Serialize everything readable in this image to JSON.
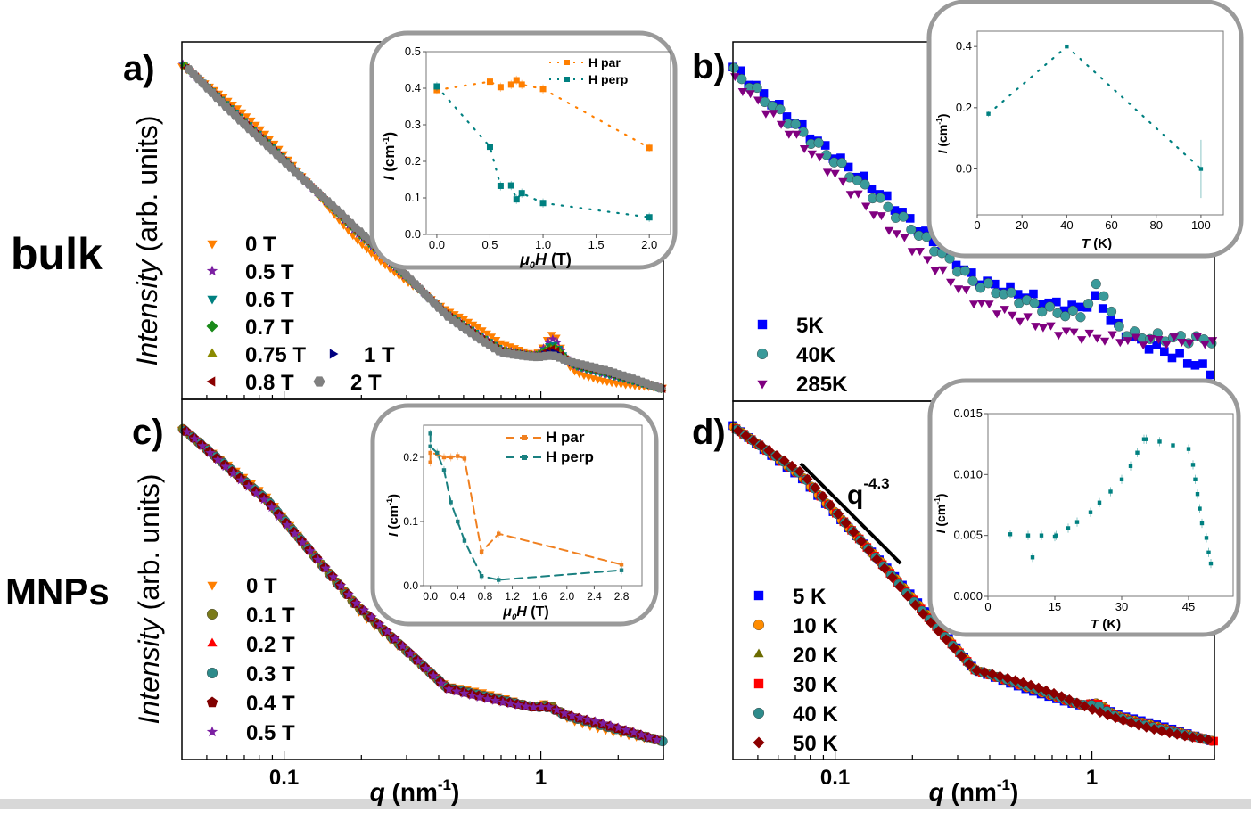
{
  "labels": {
    "panel_a": "a)",
    "panel_b": "b)",
    "panel_c": "c)",
    "panel_d": "d)",
    "row_top": "bulk",
    "row_bottom": "MNPs",
    "ylabel_italic": "Intensity",
    "ylabel_rest": " (arb. units)",
    "xlabel_q": "q",
    "xlabel_unit": " (nm",
    "xlabel_exp": "-1",
    "xlabel_close": ")",
    "slope_base": "q",
    "slope_exp": "-4.3"
  },
  "chart_data": [
    {
      "id": "a",
      "type": "scatter",
      "xscale": "log",
      "xlim": [
        0.04,
        3.0
      ],
      "ylim": [
        0,
        1
      ],
      "xticks": [
        "0.1",
        "1"
      ],
      "xtick_values": [
        0.1,
        1
      ],
      "xlabel": "q (nm-1)",
      "ylabel": "Intensity (arb. units)",
      "base_q": [
        0.04,
        0.086,
        0.19,
        0.43,
        0.7,
        1.1,
        3.0
      ],
      "base_I": [
        0.94,
        0.72,
        0.47,
        0.24,
        0.14,
        0.11,
        0.03
      ],
      "peak_q": 1.12,
      "series": [
        {
          "name": "0 T",
          "color": "#FF7F00",
          "marker": "triangle-down",
          "peak": 0.08,
          "offset": -0.02
        },
        {
          "name": "0.5 T",
          "color": "#7B1FA2",
          "marker": "star",
          "peak": 0.06,
          "offset": 0.0
        },
        {
          "name": "0.6 T",
          "color": "#008080",
          "marker": "triangle-down",
          "peak": 0.045,
          "offset": 0.0
        },
        {
          "name": "0.7 T",
          "color": "#1A8A1A",
          "marker": "diamond",
          "peak": 0.035,
          "offset": 0.005
        },
        {
          "name": "0.75 T",
          "color": "#8A8A00",
          "marker": "triangle-up",
          "peak": 0.03,
          "offset": 0.005
        },
        {
          "name": "0.8 T",
          "color": "#8B0000",
          "marker": "triangle-left",
          "peak": 0.03,
          "offset": 0.005
        },
        {
          "name": "1 T",
          "color": "#000080",
          "marker": "triangle-right",
          "peak": 0.02,
          "offset": 0.008
        },
        {
          "name": "2 T",
          "color": "#808080",
          "marker": "hexagon",
          "peak": 0.01,
          "offset": 0.01
        }
      ]
    },
    {
      "id": "b",
      "type": "scatter",
      "xscale": "log",
      "xlim": [
        0.04,
        3.0
      ],
      "ylim": [
        0,
        1
      ],
      "series": [
        {
          "name": "5K",
          "color": "#0000FF",
          "marker": "square",
          "q": [
            0.04,
            0.074,
            0.16,
            0.35,
            0.7,
            1.0,
            1.5,
            3.0
          ],
          "I": [
            0.93,
            0.76,
            0.56,
            0.34,
            0.27,
            0.25,
            0.17,
            0.08
          ],
          "peak_q": 1.05,
          "peak": 0.04
        },
        {
          "name": "40K",
          "color": "#3A9A9A",
          "marker": "circle",
          "q": [
            0.04,
            0.074,
            0.16,
            0.35,
            0.7,
            1.0,
            1.5,
            3.0
          ],
          "I": [
            0.92,
            0.75,
            0.54,
            0.33,
            0.25,
            0.23,
            0.18,
            0.17
          ],
          "peak_q": 1.07,
          "peak": 0.1
        },
        {
          "name": "285K",
          "color": "#800080",
          "marker": "triangle-down",
          "q": [
            0.04,
            0.074,
            0.16,
            0.35,
            0.7,
            1.0,
            1.5,
            3.0
          ],
          "I": [
            0.9,
            0.72,
            0.49,
            0.28,
            0.2,
            0.18,
            0.17,
            0.17
          ],
          "peak_q": 1.05,
          "peak": 0.0
        }
      ]
    },
    {
      "id": "c",
      "type": "scatter",
      "xscale": "log",
      "xlim": [
        0.04,
        3.0
      ],
      "ylim": [
        0,
        1
      ],
      "xticks": [
        "0.1",
        "1"
      ],
      "xtick_values": [
        0.1,
        1
      ],
      "xlabel": "q (nm-1)",
      "ylabel": "Intensity (arb. units)",
      "base_q": [
        0.04,
        0.086,
        0.19,
        0.43,
        1.0,
        3.0
      ],
      "base_I": [
        0.92,
        0.72,
        0.43,
        0.2,
        0.14,
        0.05
      ],
      "peak_q": 1.08,
      "series": [
        {
          "name": "0 T",
          "color": "#FF7F00",
          "marker": "triangle-down",
          "peak": 0.025,
          "offset": -0.01
        },
        {
          "name": "0.1 T",
          "color": "#7A7A1A",
          "marker": "circle",
          "peak": 0.015,
          "offset": 0.0
        },
        {
          "name": "0.2 T",
          "color": "#FF0000",
          "marker": "triangle-up",
          "peak": 0.01,
          "offset": 0.0
        },
        {
          "name": "0.3 T",
          "color": "#2E8B8B",
          "marker": "circle",
          "peak": 0.01,
          "offset": 0.0
        },
        {
          "name": "0.4 T",
          "color": "#800000",
          "marker": "pentagon",
          "peak": 0.01,
          "offset": 0.003
        },
        {
          "name": "0.5 T",
          "color": "#7B1FA2",
          "marker": "star",
          "peak": 0.01,
          "offset": 0.006
        }
      ]
    },
    {
      "id": "d",
      "type": "scatter",
      "xscale": "log",
      "xlim": [
        0.04,
        3.0
      ],
      "ylim": [
        0,
        1
      ],
      "xticks": [
        "0.1",
        "1"
      ],
      "xtick_values": [
        0.1,
        1
      ],
      "xlabel": "q (nm-1)",
      "annotation": "q-4.3",
      "base_q": [
        0.04,
        0.074,
        0.16,
        0.35,
        1.0,
        3.0
      ],
      "base_I": [
        0.93,
        0.79,
        0.53,
        0.25,
        0.14,
        0.05
      ],
      "peak_q": 1.05,
      "series": [
        {
          "name": "5 K",
          "color": "#0000FF",
          "marker": "square",
          "peak": 0.02,
          "offset": 0.005
        },
        {
          "name": "10 K",
          "color": "#FF8C00",
          "marker": "circle",
          "peak": 0.02,
          "offset": 0.0
        },
        {
          "name": "20 K",
          "color": "#6B6B00",
          "marker": "triangle-up",
          "peak": 0.02,
          "offset": 0.0
        },
        {
          "name": "30 K",
          "color": "#FF0000",
          "marker": "square",
          "peak": 0.02,
          "offset": -0.003
        },
        {
          "name": "40 K",
          "color": "#2E8B8B",
          "marker": "circle",
          "peak": 0.015,
          "offset": -0.005
        },
        {
          "name": "50 K",
          "color": "#8B0000",
          "marker": "diamond",
          "peak": 0.0,
          "offset": -0.01
        }
      ]
    },
    {
      "id": "inset_a",
      "type": "scatter",
      "xlabel_pre": "μ",
      "xlabel_sub": "0",
      "xlabel_post": "H",
      "xlabel_unit": " (T)",
      "ylabel_pre": "I",
      "ylabel_unit": " (cm",
      "ylabel_exp": "-1",
      "ylabel_close": ")",
      "xlim": [
        -0.1,
        2.2
      ],
      "ylim": [
        0,
        0.5
      ],
      "xticks": [
        0,
        0.5,
        1.0,
        1.5,
        2.0
      ],
      "xtick_labels": [
        "0.0",
        "0.5",
        "1.0",
        "1.5",
        "2.0"
      ],
      "yticks": [
        0,
        0.1,
        0.2,
        0.3,
        0.4,
        0.5
      ],
      "ytick_labels": [
        "0.0",
        "0.1",
        "0.2",
        "0.3",
        "0.4",
        "0.5"
      ],
      "line_style": "dotted",
      "legend": "top-right",
      "series": [
        {
          "name": "H par",
          "color": "#FF7F00",
          "x": [
            0,
            0.5,
            0.6,
            0.7,
            0.75,
            0.8,
            1.0,
            2.0
          ],
          "y": [
            0.395,
            0.418,
            0.403,
            0.41,
            0.422,
            0.41,
            0.398,
            0.237
          ]
        },
        {
          "name": "H perp",
          "color": "#008080",
          "x": [
            0,
            0.5,
            0.6,
            0.7,
            0.75,
            0.8,
            1.0,
            2.0
          ],
          "y": [
            0.405,
            0.24,
            0.133,
            0.134,
            0.096,
            0.113,
            0.086,
            0.047
          ]
        }
      ]
    },
    {
      "id": "inset_b",
      "type": "scatter",
      "xlabel_pre": "T",
      "xlabel_unit": " (K)",
      "ylabel_pre": "I",
      "ylabel_unit": " (cm",
      "ylabel_exp": "-1",
      "ylabel_close": ")",
      "xlim": [
        0,
        110
      ],
      "ylim": [
        -0.15,
        0.45
      ],
      "xticks": [
        0,
        20,
        40,
        60,
        80,
        100
      ],
      "xtick_labels": [
        "0",
        "20",
        "40",
        "60",
        "80",
        "100"
      ],
      "yticks": [
        0,
        0.2,
        0.4
      ],
      "ytick_labels": [
        "0.0",
        "0.2",
        "0.4"
      ],
      "line_style": "dotted",
      "series": [
        {
          "color": "#008080",
          "x": [
            5,
            40,
            100
          ],
          "y": [
            0.18,
            0.4,
            0.0
          ],
          "yerr": [
            0.01,
            0.005,
            0.095
          ]
        }
      ]
    },
    {
      "id": "inset_c",
      "type": "line",
      "xlabel_pre": "μ",
      "xlabel_sub": "0",
      "xlabel_post": "H",
      "xlabel_unit": " (T)",
      "ylabel_pre": "I",
      "ylabel_unit": " (cm",
      "ylabel_exp": "-1",
      "ylabel_close": ")",
      "xlim": [
        -0.1,
        3.1
      ],
      "ylim": [
        0,
        0.25
      ],
      "xticks": [
        0,
        0.4,
        0.8,
        1.2,
        1.6,
        2.0,
        2.4,
        2.8
      ],
      "xtick_labels": [
        "0.0",
        "0.4",
        "0.8",
        "1.2",
        "1.6",
        "2.0",
        "2.4",
        "2.8"
      ],
      "yticks": [
        0,
        0.1,
        0.2
      ],
      "ytick_labels": [
        "0.0",
        "0.1",
        "0.2"
      ],
      "line_style": "dashed",
      "legend": "top-right",
      "series": [
        {
          "name": "H par",
          "color": "#F08020",
          "x": [
            0,
            0,
            0.1,
            0.2,
            0.3,
            0.4,
            0.5,
            0.75,
            1.0,
            2.8
          ],
          "y": [
            0.192,
            0.207,
            0.205,
            0.2,
            0.2,
            0.202,
            0.198,
            0.053,
            0.081,
            0.033
          ]
        },
        {
          "name": "H perp",
          "color": "#1A8080",
          "x": [
            0,
            0,
            0.1,
            0.2,
            0.3,
            0.4,
            0.5,
            0.75,
            1.0,
            2.8
          ],
          "y": [
            0.237,
            0.217,
            0.207,
            0.18,
            0.13,
            0.1,
            0.07,
            0.015,
            0.009,
            0.024
          ]
        }
      ]
    },
    {
      "id": "inset_d",
      "type": "scatter",
      "xlabel_pre": "T",
      "xlabel_unit": " (K)",
      "ylabel_pre": "I",
      "ylabel_unit": " (cm",
      "ylabel_exp": "-1",
      "ylabel_close": ")",
      "xlim": [
        0,
        55
      ],
      "ylim": [
        0,
        0.015
      ],
      "xticks": [
        0,
        15,
        30,
        45
      ],
      "xtick_labels": [
        "0",
        "15",
        "30",
        "45"
      ],
      "yticks": [
        0,
        0.005,
        0.01,
        0.015
      ],
      "ytick_labels": [
        "0.000",
        "0.005",
        "0.010",
        "0.015"
      ],
      "series": [
        {
          "color": "#008080",
          "x": [
            5,
            9,
            10,
            12,
            15,
            15.3,
            18,
            20,
            23,
            25,
            27.5,
            30,
            32,
            33.5,
            35,
            35.5,
            38.5,
            41.5,
            45,
            46,
            46.5,
            47,
            47.5,
            48,
            49,
            49.5,
            50
          ],
          "y": [
            0.0051,
            0.005,
            0.0032,
            0.005,
            0.0049,
            0.005,
            0.0056,
            0.0061,
            0.0069,
            0.0077,
            0.0086,
            0.0096,
            0.0107,
            0.0118,
            0.0129,
            0.0129,
            0.0127,
            0.0124,
            0.0121,
            0.0108,
            0.0096,
            0.0084,
            0.0072,
            0.006,
            0.0048,
            0.0036,
            0.0027
          ]
        }
      ]
    }
  ]
}
